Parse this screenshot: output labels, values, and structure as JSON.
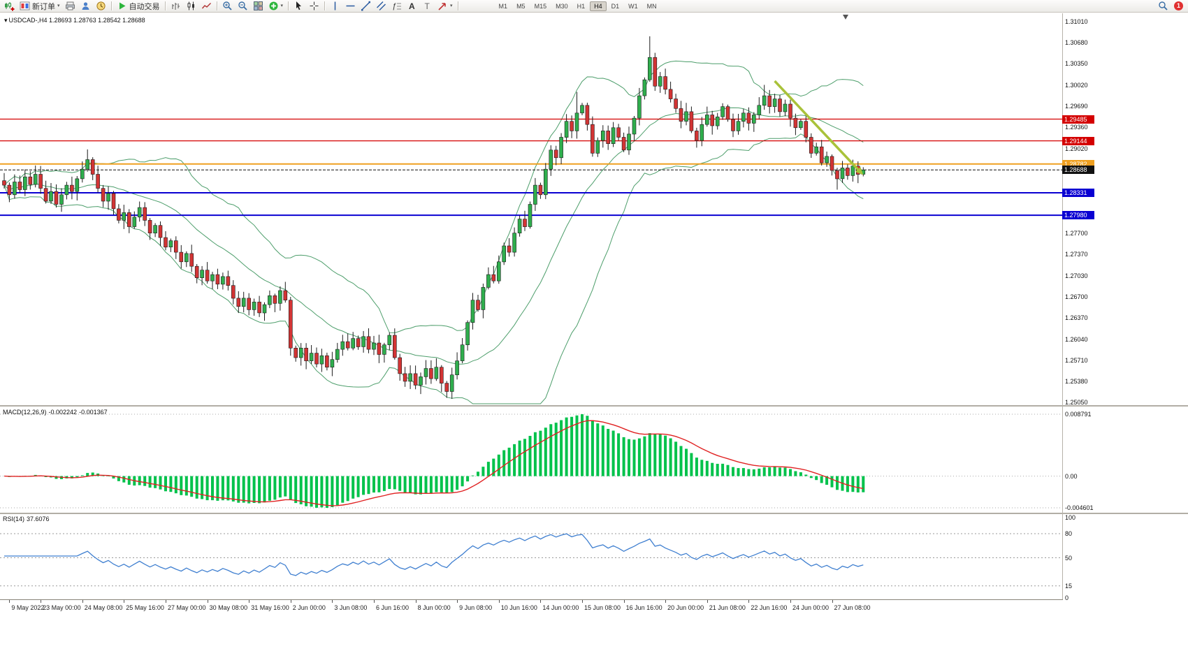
{
  "toolbar": {
    "new_order_label": "新订单",
    "auto_trading_label": "自动交易",
    "timeframes": [
      "M1",
      "M5",
      "M15",
      "M30",
      "H1",
      "H4",
      "D1",
      "W1",
      "MN"
    ],
    "active_timeframe": "H4",
    "notification_count": "1",
    "icon_glyphs": {
      "caret": "▾",
      "collapse": "▾",
      "fibonacci": "ƒ",
      "text_tool": "A",
      "label_tool": "T"
    }
  },
  "chart": {
    "symbol_label": "USDCAD-,H4 1.28693 1.28763 1.28542 1.28688"
  },
  "indicators": {
    "macd": {
      "name": "MACD(12,26,9)",
      "value_main": "-0.002242",
      "value_signal": "-0.001367",
      "axis_top": "0.008791",
      "axis_zero": "0.00",
      "axis_bottom": "-0.004601"
    },
    "rsi": {
      "name": "RSI(14)",
      "value": "37.6076",
      "levels": [
        80,
        50,
        15
      ],
      "axis_labels": [
        100,
        80,
        50,
        15,
        0
      ]
    }
  },
  "chart_data": {
    "type": "candlestick",
    "symbol": "USDCAD-",
    "timeframe": "H4",
    "quote": {
      "open": 1.28693,
      "high": 1.28763,
      "low": 1.28542,
      "close": 1.28688
    },
    "ylim": [
      1.2505,
      1.3101
    ],
    "y_ticks": [
      1.3101,
      1.3068,
      1.3035,
      1.3002,
      1.2969,
      1.2936,
      1.2902,
      1.277,
      1.2737,
      1.2703,
      1.267,
      1.2637,
      1.2604,
      1.2571,
      1.2538,
      1.2505
    ],
    "first_open": 1.2852,
    "closes": [
      1.2845,
      1.283,
      1.285,
      1.2838,
      1.2858,
      1.2846,
      1.2862,
      1.284,
      1.282,
      1.2835,
      1.2815,
      1.283,
      1.2845,
      1.2835,
      1.2855,
      1.287,
      1.2885,
      1.2862,
      1.284,
      1.282,
      1.2832,
      1.2808,
      1.279,
      1.2802,
      1.278,
      1.2795,
      1.281,
      1.279,
      1.277,
      1.2782,
      1.2763,
      1.2748,
      1.2758,
      1.274,
      1.2725,
      1.2738,
      1.2718,
      1.27,
      1.2712,
      1.2695,
      1.2705,
      1.269,
      1.2702,
      1.2688,
      1.2668,
      1.2655,
      1.2668,
      1.265,
      1.2662,
      1.2645,
      1.2658,
      1.2672,
      1.266,
      1.268,
      1.2665,
      1.259,
      1.2575,
      1.259,
      1.257,
      1.2582,
      1.2565,
      1.2578,
      1.256,
      1.2572,
      1.2588,
      1.26,
      1.259,
      1.2605,
      1.2592,
      1.2608,
      1.2588,
      1.2598,
      1.258,
      1.2595,
      1.261,
      1.2575,
      1.255,
      1.2538,
      1.255,
      1.2532,
      1.2545,
      1.2558,
      1.2542,
      1.256,
      1.2535,
      1.2522,
      1.2548,
      1.257,
      1.2595,
      1.263,
      1.2665,
      1.265,
      1.2685,
      1.2705,
      1.2695,
      1.2725,
      1.275,
      1.274,
      1.277,
      1.2792,
      1.278,
      1.2815,
      1.2845,
      1.283,
      1.287,
      1.29,
      1.2888,
      1.292,
      1.2945,
      1.293,
      1.2958,
      1.297,
      1.294,
      1.2895,
      1.2915,
      1.293,
      1.291,
      1.2935,
      1.292,
      1.29,
      1.2925,
      1.295,
      1.2985,
      1.301,
      1.3045,
      1.3,
      1.3015,
      1.2995,
      1.298,
      1.2965,
      1.2945,
      1.296,
      1.293,
      1.2915,
      1.294,
      1.2955,
      1.2938,
      1.2952,
      1.2968,
      1.2948,
      1.293,
      1.2945,
      1.2958,
      1.2942,
      1.2955,
      1.297,
      1.2985,
      1.2968,
      1.298,
      1.296,
      1.2972,
      1.295,
      1.2935,
      1.2945,
      1.292,
      1.2895,
      1.2905,
      1.288,
      1.289,
      1.2868,
      1.2855,
      1.2872,
      1.286,
      1.2875,
      1.2862,
      1.28688
    ],
    "wick_overrides": {
      "16": {
        "h": 1.2901
      },
      "55": {
        "l": 1.2578
      },
      "80": {
        "l": 1.2518
      },
      "85": {
        "l": 1.2512
      },
      "110": {
        "h": 1.2991
      },
      "124": {
        "h": 1.3078
      },
      "146": {
        "h": 1.3002
      },
      "160": {
        "l": 1.2838
      }
    },
    "bollinger": {
      "period": 20,
      "deviation": 2
    },
    "hlines": [
      {
        "price": 1.29485,
        "label": "1.29485",
        "color": "#d40000",
        "width": 1.2
      },
      {
        "price": 1.29144,
        "label": "1.29144",
        "color": "#d40000",
        "width": 1.2
      },
      {
        "price": 1.28782,
        "label": "1.28782",
        "color": "#efa021",
        "width": 2
      },
      {
        "price": 1.28331,
        "label": "1.28331",
        "color": "#0a00d2",
        "width": 2
      },
      {
        "price": 1.2798,
        "label": "1.27980",
        "color": "#0a00d2",
        "width": 2
      }
    ],
    "bid": {
      "price": 1.28688,
      "label": "1.28688",
      "color": "#111111"
    },
    "dates": [
      {
        "bar": 1,
        "label": "9 May 2022"
      },
      {
        "bar": 7,
        "label": "23 May 00:00"
      },
      {
        "bar": 15,
        "label": "24 May 08:00"
      },
      {
        "bar": 23,
        "label": "25 May 16:00"
      },
      {
        "bar": 31,
        "label": "27 May 00:00"
      },
      {
        "bar": 39,
        "label": "30 May 08:00"
      },
      {
        "bar": 47,
        "label": "31 May 16:00"
      },
      {
        "bar": 55,
        "label": "2 Jun 00:00"
      },
      {
        "bar": 63,
        "label": "3 Jun 08:00"
      },
      {
        "bar": 71,
        "label": "6 Jun 16:00"
      },
      {
        "bar": 79,
        "label": "8 Jun 00:00"
      },
      {
        "bar": 87,
        "label": "9 Jun 08:00"
      },
      {
        "bar": 95,
        "label": "10 Jun 16:00"
      },
      {
        "bar": 103,
        "label": "14 Jun 00:00"
      },
      {
        "bar": 111,
        "label": "15 Jun 08:00"
      },
      {
        "bar": 119,
        "label": "16 Jun 16:00"
      },
      {
        "bar": 127,
        "label": "20 Jun 00:00"
      },
      {
        "bar": 135,
        "label": "21 Jun 08:00"
      },
      {
        "bar": 143,
        "label": "22 Jun 16:00"
      },
      {
        "bar": 151,
        "label": "24 Jun 00:00"
      },
      {
        "bar": 159,
        "label": "27 Jun 08:00"
      }
    ],
    "arrow": {
      "from_bar": 148,
      "from_price": 1.3008,
      "to_bar": 165,
      "to_price": 1.2861,
      "color": "#a9c23a"
    },
    "colors": {
      "up": "#2fae4d",
      "down": "#d23434",
      "outline": "#1c1c1c",
      "band": "#4d9e6b",
      "macd_hist": "#00c24b",
      "macd_signal": "#e02222",
      "rsi": "#3f7fd0"
    }
  }
}
